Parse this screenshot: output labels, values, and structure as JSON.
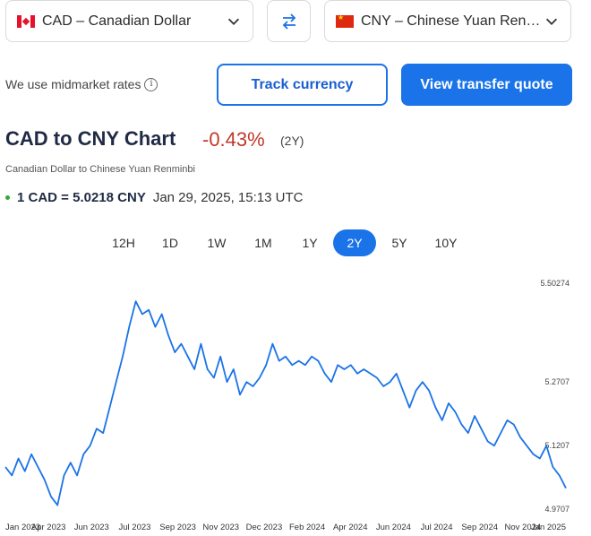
{
  "from_currency": {
    "label": "CAD – Canadian Dollar",
    "flag": "canada-flag"
  },
  "to_currency": {
    "label": "CNY – Chinese Yuan Renminbi",
    "flag": "china-flag"
  },
  "swap_icon": "swap-arrows-icon",
  "midmarket_text": "We use midmarket rates",
  "track_button": "Track currency",
  "quote_button": "View transfer quote",
  "chart_header": {
    "title": "CAD to CNY Chart",
    "change": "-0.43%",
    "period": "(2Y)",
    "subtitle": "Canadian Dollar to Chinese Yuan Renminbi",
    "rate": "1 CAD = 5.0218 CNY",
    "timestamp": "Jan 29, 2025, 15:13 UTC"
  },
  "tabs": [
    "12H",
    "1D",
    "1W",
    "1M",
    "1Y",
    "2Y",
    "5Y",
    "10Y"
  ],
  "active_tab": "2Y",
  "colors": {
    "accent": "#1a73e8",
    "negative": "#c0392b",
    "line": "#1a73e8"
  },
  "chart_data": {
    "type": "line",
    "ylim": [
      4.9707,
      5.50274
    ],
    "y_ticks": [
      "5.50274",
      "5.2707",
      "5.1207",
      "4.9707"
    ],
    "y_tick_values": [
      5.50274,
      5.2707,
      5.1207,
      4.9707
    ],
    "x_tick_labels": [
      "Jan 2023",
      "Apr 2023",
      "Jun 2023",
      "Jul 2023",
      "Sep 2023",
      "Nov 2023",
      "Dec 2023",
      "Feb 2024",
      "Apr 2024",
      "Jun 2024",
      "Jul 2024",
      "Sep 2024",
      "Nov 2024",
      "Jan 2025"
    ],
    "series": [
      {
        "values": [
          5.07,
          5.05,
          5.09,
          5.06,
          5.1,
          5.07,
          5.04,
          5.0,
          4.98,
          5.05,
          5.08,
          5.05,
          5.1,
          5.12,
          5.16,
          5.15,
          5.21,
          5.27,
          5.33,
          5.4,
          5.46,
          5.43,
          5.44,
          5.4,
          5.43,
          5.38,
          5.34,
          5.36,
          5.33,
          5.3,
          5.36,
          5.3,
          5.28,
          5.33,
          5.27,
          5.3,
          5.24,
          5.27,
          5.26,
          5.28,
          5.31,
          5.36,
          5.32,
          5.33,
          5.31,
          5.32,
          5.31,
          5.33,
          5.32,
          5.29,
          5.27,
          5.31,
          5.3,
          5.31,
          5.29,
          5.3,
          5.29,
          5.28,
          5.26,
          5.27,
          5.29,
          5.25,
          5.21,
          5.25,
          5.27,
          5.25,
          5.21,
          5.18,
          5.22,
          5.2,
          5.17,
          5.15,
          5.19,
          5.16,
          5.13,
          5.12,
          5.15,
          5.18,
          5.17,
          5.14,
          5.12,
          5.1,
          5.09,
          5.12,
          5.07,
          5.05,
          5.02
        ]
      }
    ]
  }
}
